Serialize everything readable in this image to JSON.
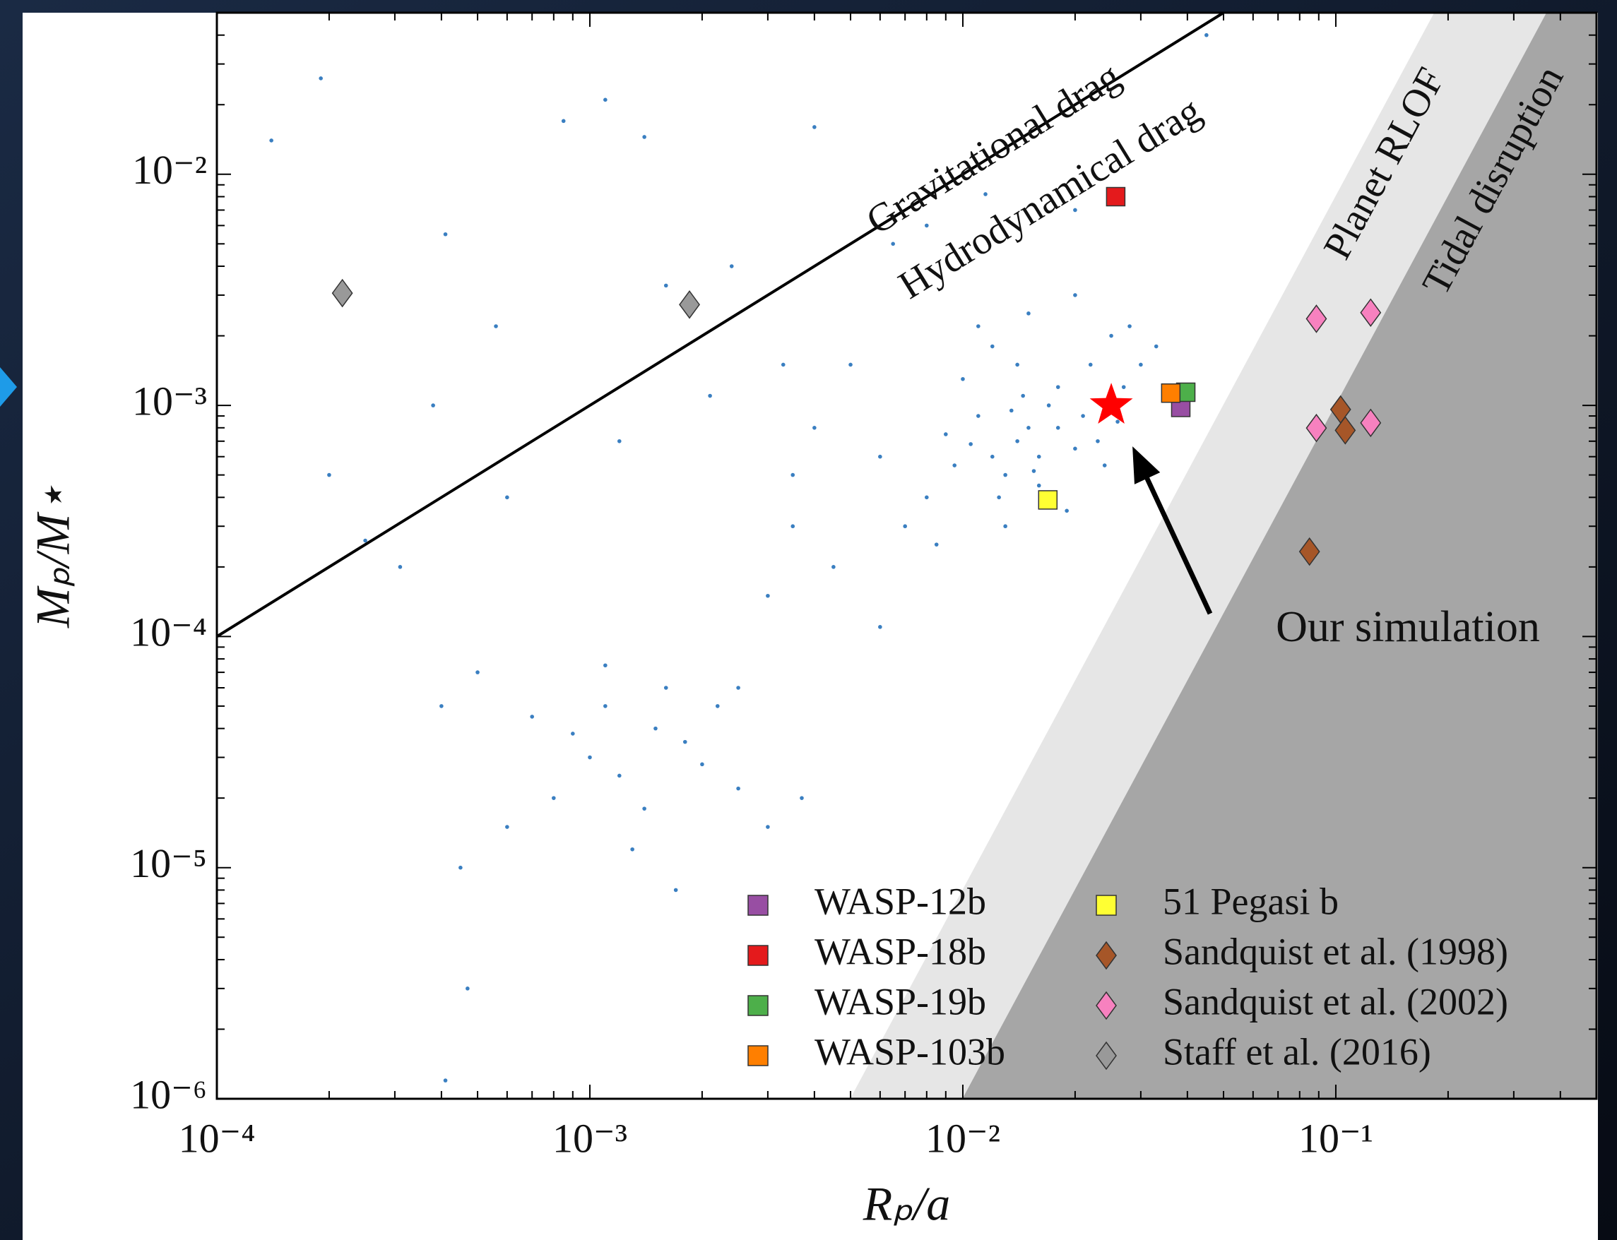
{
  "chart_data": {
    "type": "scatter",
    "xlabel": "Rₚ/a",
    "ylabel": "Mₚ/M⋆",
    "xscale": "log",
    "yscale": "log",
    "xlim": [
      0.0001,
      0.5
    ],
    "ylim": [
      1e-06,
      0.05
    ],
    "xticks": [
      {
        "value": 0.0001,
        "label": "10⁻⁴"
      },
      {
        "value": 0.001,
        "label": "10⁻³"
      },
      {
        "value": 0.01,
        "label": "10⁻²"
      },
      {
        "value": 0.1,
        "label": "10⁻¹"
      }
    ],
    "yticks": [
      {
        "value": 1e-06,
        "label": "10⁻⁶"
      },
      {
        "value": 1e-05,
        "label": "10⁻⁵"
      },
      {
        "value": 0.0001,
        "label": "10⁻⁴"
      },
      {
        "value": 0.001,
        "label": "10⁻³"
      },
      {
        "value": 0.01,
        "label": "10⁻²"
      }
    ],
    "lines": [
      {
        "labels": [
          "Gravitational drag",
          "Hydrodynamical drag"
        ],
        "x": [
          0.0001,
          0.05
        ],
        "y": [
          0.0001,
          0.05
        ],
        "color": "#000000"
      }
    ],
    "regions": [
      {
        "label": "Planet RLOF",
        "x": [
          0.005,
          0.184
        ],
        "y": [
          1e-06,
          0.05
        ],
        "color": "#e6e6e6"
      },
      {
        "label": "Tidal disruption",
        "x": [
          0.01,
          0.368
        ],
        "y": [
          1e-06,
          0.05
        ],
        "color": "#a6a6a6"
      }
    ],
    "population": {
      "color": "#3a7fc1",
      "x": [
        0.012,
        0.015,
        0.013,
        0.018,
        0.014,
        0.011,
        0.016,
        0.02,
        0.017,
        0.0095,
        0.022,
        0.025,
        0.019,
        0.013,
        0.008,
        0.01,
        0.012,
        0.015,
        0.021,
        0.023,
        0.027,
        0.03,
        0.009,
        0.007,
        0.006,
        0.011,
        0.014,
        0.016,
        0.018,
        0.024,
        0.026,
        0.0125,
        0.0135,
        0.0145,
        0.0155,
        0.0105,
        0.02,
        0.028,
        0.033,
        0.0085,
        0.005,
        0.004,
        0.006,
        0.0045,
        0.0035,
        0.003,
        0.0025,
        0.0065,
        0.008,
        0.02,
        0.0035,
        0.001,
        0.0012,
        0.0015,
        0.0008,
        0.0018,
        0.0011,
        0.0014,
        0.0009,
        0.002,
        0.0007,
        0.0016,
        0.0013,
        0.0006,
        0.0022,
        0.0025,
        0.0005,
        0.00045,
        0.0017,
        0.003,
        0.0004,
        0.0011,
        0.00019,
        0.00014,
        0.00085,
        0.0011,
        0.0014,
        0.00041,
        0.00056,
        0.00038,
        0.0002,
        0.00025,
        0.00031,
        0.0016,
        0.0024,
        0.004,
        0.0037,
        0.0006,
        0.0012,
        0.0021,
        0.00047,
        0.00041,
        0.0033,
        0.045,
        0.0115
      ],
      "y": [
        0.0006,
        0.0008,
        0.0005,
        0.0012,
        0.0007,
        0.0009,
        0.00045,
        0.00065,
        0.001,
        0.00055,
        0.0015,
        0.002,
        0.00035,
        0.0003,
        0.0004,
        0.0013,
        0.0018,
        0.0025,
        0.0009,
        0.0007,
        0.0012,
        0.0015,
        0.00075,
        0.0003,
        0.0006,
        0.0022,
        0.0015,
        0.0006,
        0.0008,
        0.00055,
        0.00085,
        0.0004,
        0.00095,
        0.0011,
        0.00052,
        0.00068,
        0.003,
        0.0022,
        0.0018,
        0.00025,
        0.0015,
        0.0008,
        0.00011,
        0.0002,
        0.0003,
        0.00015,
        6e-05,
        0.005,
        0.006,
        0.007,
        0.0005,
        3e-05,
        2.5e-05,
        4e-05,
        2e-05,
        3.5e-05,
        5e-05,
        1.8e-05,
        3.8e-05,
        2.8e-05,
        4.5e-05,
        6e-05,
        1.2e-05,
        1.5e-05,
        5e-05,
        2.2e-05,
        7e-05,
        1e-05,
        8e-06,
        1.5e-05,
        5e-05,
        7.5e-05,
        0.026,
        0.014,
        0.017,
        0.021,
        0.0145,
        0.0055,
        0.0022,
        0.001,
        0.0005,
        0.00026,
        0.0002,
        0.0033,
        0.004,
        0.016,
        2e-05,
        0.0004,
        0.0007,
        0.0011,
        3e-06,
        1.2e-06,
        0.0015,
        0.04,
        0.0082
      ]
    },
    "series": [
      {
        "name": "WASP-12b",
        "color": "#984ea3",
        "marker": "square",
        "x": [
          0.0384
        ],
        "y": [
          0.00098
        ]
      },
      {
        "name": "WASP-18b",
        "color": "#e41a1c",
        "marker": "square",
        "x": [
          0.0257
        ],
        "y": [
          0.008
        ]
      },
      {
        "name": "WASP-19b",
        "color": "#4daf4a",
        "marker": "square",
        "x": [
          0.0396
        ],
        "y": [
          0.00114
        ]
      },
      {
        "name": "WASP-103b",
        "color": "#ff7f00",
        "marker": "square",
        "x": [
          0.0361
        ],
        "y": [
          0.00113
        ]
      },
      {
        "name": "51 Pegasi b",
        "color": "#ffff33",
        "marker": "square",
        "x": [
          0.0169
        ],
        "y": [
          0.00039
        ]
      },
      {
        "name": "Sandquist et al. (1998)",
        "color": "#a65628",
        "marker": "diamond",
        "x": [
          0.103,
          0.106,
          0.085
        ],
        "y": [
          0.00096,
          0.00078,
          0.000233
        ]
      },
      {
        "name": "Sandquist et al. (2002)",
        "color": "#f781bf",
        "marker": "diamond",
        "x": [
          0.0887,
          0.124,
          0.0887,
          0.124
        ],
        "y": [
          0.00237,
          0.00252,
          0.000798,
          0.00084
        ]
      },
      {
        "name": "Staff et al. (2016)",
        "color": "#999999",
        "marker": "diamond",
        "x": [
          0.000217,
          0.00185
        ],
        "y": [
          0.00306,
          0.00273
        ]
      }
    ],
    "simulation": {
      "label": "Our simulation",
      "x": 0.025,
      "y": 0.001,
      "color": "#ff0000"
    },
    "legend": "lower right"
  }
}
